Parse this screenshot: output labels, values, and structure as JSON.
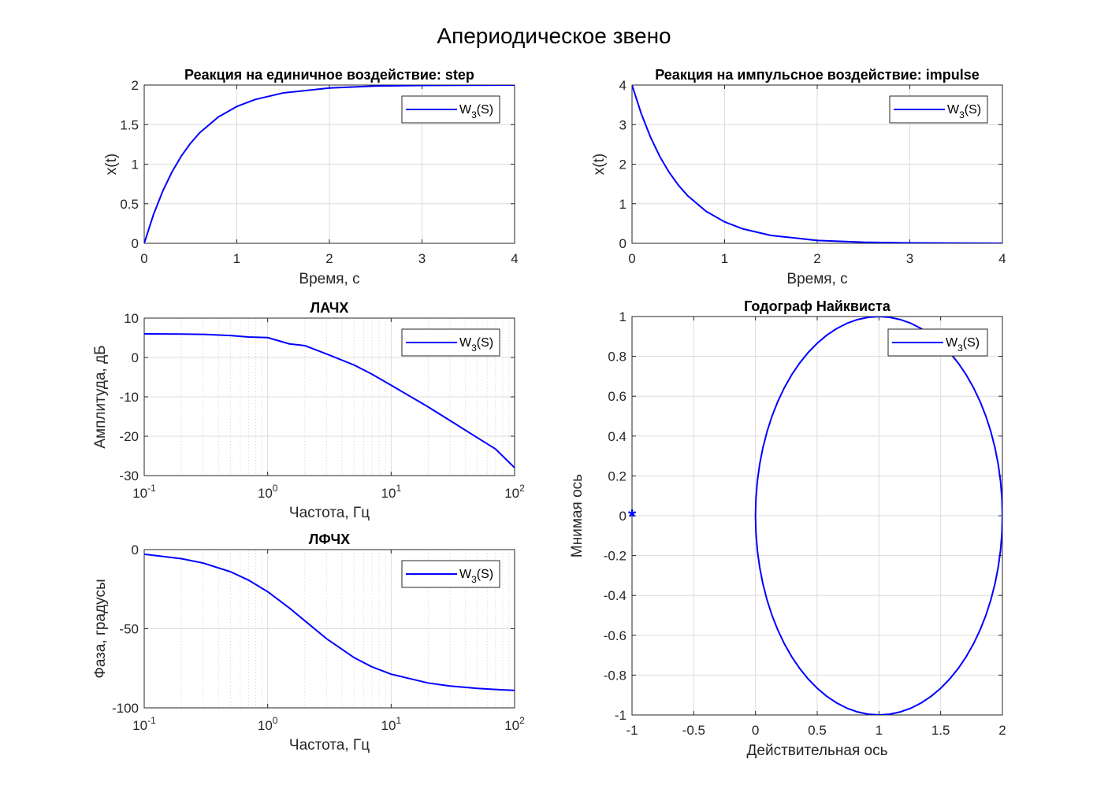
{
  "figure": {
    "title": "Апериодическое звено",
    "colors": {
      "line": "#0000ff",
      "grid": "#dcdcdc",
      "axes": "#262626"
    }
  },
  "chart_data": [
    {
      "id": "step",
      "type": "line",
      "title": "Реакция на единичное воздействие: step",
      "xlabel": "Время, с",
      "ylabel": "x(t)",
      "xlim": [
        0,
        4
      ],
      "ylim": [
        0,
        2
      ],
      "xticks": [
        0,
        1,
        2,
        3,
        4
      ],
      "yticks": [
        0,
        0.5,
        1,
        1.5,
        2
      ],
      "ytick_labels": [
        "0",
        "0.5",
        "1",
        "1.5",
        "2"
      ],
      "legend": {
        "name": "W",
        "sub": "3",
        "suffix": "(S)",
        "location": "top-right"
      },
      "grid": true,
      "series": [
        {
          "name": "W3(S)",
          "x": [
            0,
            0.1,
            0.2,
            0.3,
            0.4,
            0.5,
            0.6,
            0.8,
            1.0,
            1.2,
            1.5,
            2.0,
            2.5,
            3.0,
            3.5,
            4.0
          ],
          "y": [
            0,
            0.363,
            0.659,
            0.902,
            1.101,
            1.264,
            1.398,
            1.596,
            1.729,
            1.818,
            1.9,
            1.963,
            1.987,
            1.995,
            1.998,
            1.999
          ]
        }
      ]
    },
    {
      "id": "impulse",
      "type": "line",
      "title": "Реакция на импульсное воздействие: impulse",
      "xlabel": "Время, с",
      "ylabel": "x(t)",
      "xlim": [
        0,
        4
      ],
      "ylim": [
        0,
        4
      ],
      "xticks": [
        0,
        1,
        2,
        3,
        4
      ],
      "yticks": [
        0,
        1,
        2,
        3,
        4
      ],
      "ytick_labels": [
        "0",
        "1",
        "2",
        "3",
        "4"
      ],
      "legend": {
        "name": "W",
        "sub": "3",
        "suffix": "(S)",
        "location": "top-right"
      },
      "grid": true,
      "series": [
        {
          "name": "W3(S)",
          "x": [
            0,
            0.1,
            0.2,
            0.3,
            0.4,
            0.5,
            0.6,
            0.8,
            1.0,
            1.2,
            1.5,
            2.0,
            2.5,
            3.0,
            3.5,
            4.0
          ],
          "y": [
            4.0,
            3.275,
            2.681,
            2.195,
            1.797,
            1.472,
            1.205,
            0.808,
            0.541,
            0.363,
            0.199,
            0.073,
            0.027,
            0.01,
            0.004,
            0.001
          ]
        }
      ]
    },
    {
      "id": "lachx",
      "type": "line",
      "title": "ЛАЧХ",
      "xlabel": "Частота, Гц",
      "ylabel": "Амплитуда, дБ",
      "xscale": "log",
      "xlim": [
        0.1,
        100
      ],
      "ylim": [
        -30,
        10
      ],
      "xticks": [
        0.1,
        1,
        10,
        100
      ],
      "xtick_exponents": [
        "-1",
        "0",
        "1",
        "2"
      ],
      "yticks": [
        -30,
        -20,
        -10,
        0,
        10
      ],
      "ytick_labels": [
        "-30",
        "-20",
        "-10",
        "0",
        "10"
      ],
      "legend": {
        "name": "W",
        "sub": "3",
        "suffix": "(S)",
        "location": "top-right"
      },
      "grid": true,
      "series": [
        {
          "name": "W3(S)",
          "x": [
            0.1,
            0.2,
            0.3,
            0.5,
            0.7,
            1,
            1.5,
            2,
            3,
            5,
            7,
            10,
            20,
            30,
            50,
            70,
            100
          ],
          "y": [
            6.01,
            5.95,
            5.87,
            5.58,
            5.21,
            5.05,
            3.45,
            3.01,
            0.89,
            -1.9,
            -4.25,
            -7.06,
            -12.57,
            -16.03,
            -20.39,
            -23.24,
            -28.0
          ]
        }
      ]
    },
    {
      "id": "lfchx",
      "type": "line",
      "title": "ЛФЧХ",
      "xlabel": "Частота, Гц",
      "ylabel": "Фаза, градусы",
      "xscale": "log",
      "xlim": [
        0.1,
        100
      ],
      "ylim": [
        -100,
        0
      ],
      "xticks": [
        0.1,
        1,
        10,
        100
      ],
      "xtick_exponents": [
        "-1",
        "0",
        "1",
        "2"
      ],
      "yticks": [
        -100,
        -50,
        0
      ],
      "ytick_labels": [
        "-100",
        "-50",
        "0"
      ],
      "legend": {
        "name": "W",
        "sub": "3",
        "suffix": "(S)",
        "location": "top-right"
      },
      "grid": true,
      "series": [
        {
          "name": "W3(S)",
          "x": [
            0.1,
            0.2,
            0.3,
            0.5,
            0.7,
            1,
            1.5,
            2,
            3,
            5,
            7,
            10,
            20,
            30,
            50,
            70,
            100
          ],
          "y": [
            -2.9,
            -5.7,
            -8.5,
            -14.0,
            -19.3,
            -26.6,
            -36.9,
            -45.0,
            -56.3,
            -68.2,
            -74.1,
            -78.7,
            -84.3,
            -86.2,
            -87.7,
            -88.4,
            -88.9
          ]
        }
      ]
    },
    {
      "id": "nyquist",
      "type": "line",
      "title": "Годограф Найквиста",
      "xlabel": "Действительная ось",
      "ylabel": "Мнимая ось",
      "xlim": [
        -1,
        2
      ],
      "ylim": [
        -1,
        1
      ],
      "xticks": [
        -1,
        -0.5,
        0,
        0.5,
        1,
        1.5,
        2
      ],
      "xtick_labels": [
        "-1",
        "-0.5",
        "0",
        "0.5",
        "1",
        "1.5",
        "2"
      ],
      "yticks": [
        -1,
        -0.8,
        -0.6,
        -0.4,
        -0.2,
        0,
        0.2,
        0.4,
        0.6,
        0.8,
        1
      ],
      "ytick_labels": [
        "-1",
        "-0.8",
        "-0.6",
        "-0.4",
        "-0.2",
        "0",
        "0.2",
        "0.4",
        "0.6",
        "0.8",
        "1"
      ],
      "legend": {
        "name": "W",
        "sub": "3",
        "suffix": "(S)",
        "location": "top-right"
      },
      "grid": true,
      "marker": {
        "x": -1,
        "y": 0,
        "symbol": "*"
      },
      "series": [
        {
          "name": "W3(S)",
          "shape": "circle",
          "center": [
            1,
            0
          ],
          "radius": 1
        }
      ]
    }
  ]
}
